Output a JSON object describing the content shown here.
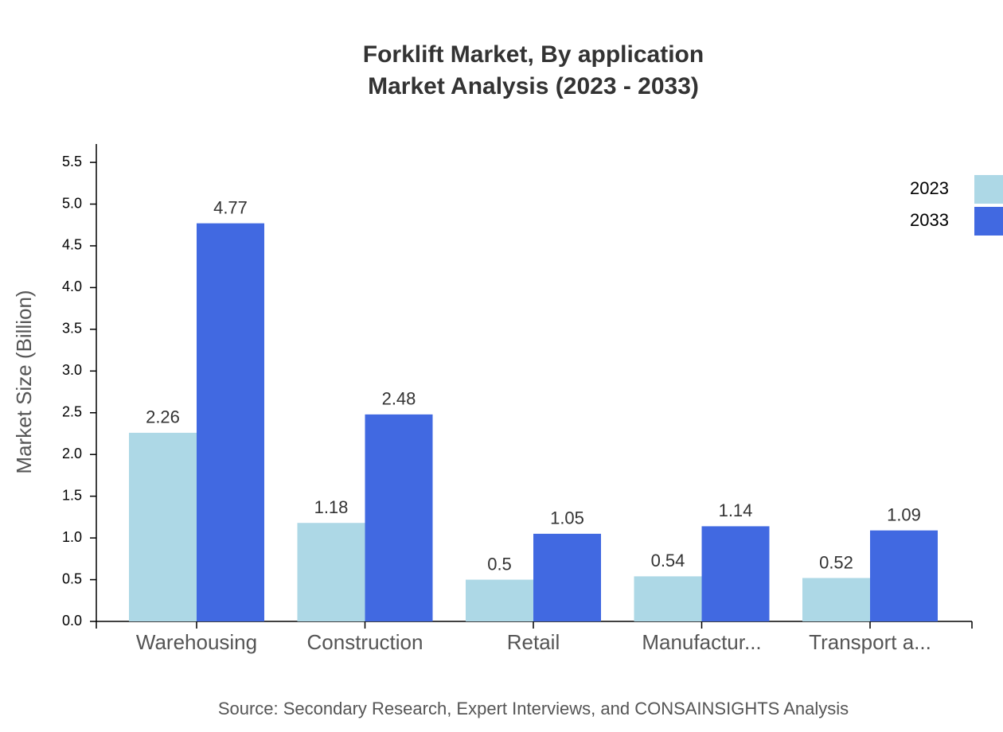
{
  "chart_data": {
    "type": "bar",
    "title": "Forklift Market, By application",
    "subtitle": "Market Analysis (2023 - 2033)",
    "y_label": "Market Size (Billion)",
    "source": "Source: Secondary Research, Expert Interviews, and CONSAINSIGHTS Analysis",
    "categories": [
      "Warehousing",
      "Construction",
      "Retail",
      "Manufactur...",
      "Transport a..."
    ],
    "series": [
      {
        "name": "2023",
        "color": "#add8e6",
        "values": [
          2.26,
          1.18,
          0.5,
          0.54,
          0.52
        ]
      },
      {
        "name": "2033",
        "color": "#4169e1",
        "values": [
          4.77,
          2.48,
          1.05,
          1.14,
          1.09
        ]
      }
    ],
    "ylim": [
      0,
      5.72
    ],
    "yticks": [
      {
        "value": 0,
        "label": "0.0"
      },
      0.5,
      {
        "value": 1,
        "label": "1.0"
      },
      1.5,
      {
        "value": 2,
        "label": "2.0"
      },
      2.5,
      {
        "value": 3,
        "label": "3.0"
      },
      3.5,
      {
        "value": 4,
        "label": "4.0"
      },
      4.5,
      {
        "value": 5,
        "label": "5.0"
      },
      5.5
    ],
    "grid": false,
    "legend": "top-right"
  }
}
